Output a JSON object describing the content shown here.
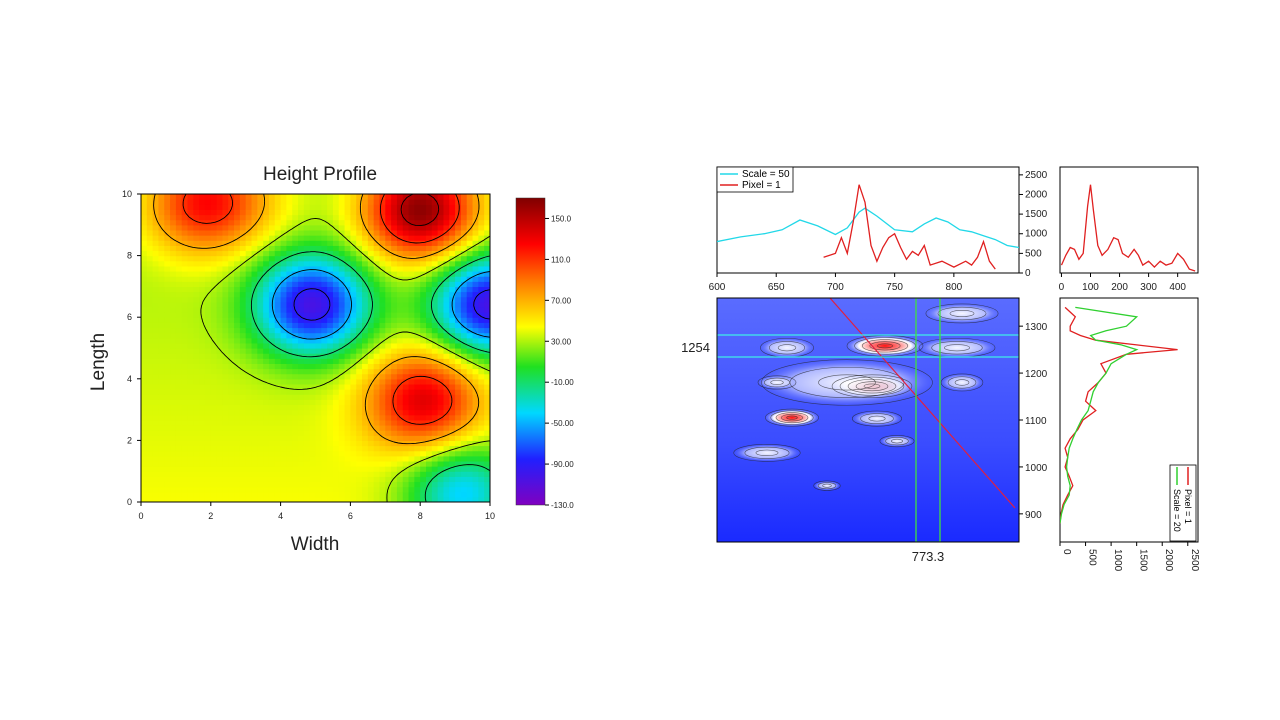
{
  "chart_data": [
    {
      "type": "heatmap",
      "title": "Height Profile",
      "xlabel": "Width",
      "ylabel": "Length",
      "xlim": [
        0,
        10
      ],
      "ylim": [
        0,
        10
      ],
      "xticks": [
        "0",
        "2",
        "4",
        "6",
        "8",
        "10"
      ],
      "yticks": [
        "0",
        "2",
        "4",
        "6",
        "8",
        "10"
      ],
      "colorbar": {
        "range": [
          -130,
          170
        ],
        "ticks": [
          "150.0",
          "110.0",
          "70.00",
          "30.00",
          "-10.00",
          "-50.00",
          "-90.00",
          "-130.0"
        ],
        "tick_values": [
          150,
          110,
          70,
          30,
          -10,
          -50,
          -90,
          -130
        ]
      },
      "peaks": [
        {
          "x": 1.7,
          "y": 9.7,
          "value": 110
        },
        {
          "x": 8.0,
          "y": 9.5,
          "value": 165
        },
        {
          "x": 8.1,
          "y": 3.3,
          "value": 125
        },
        {
          "x": 4.9,
          "y": 6.4,
          "value": -110
        },
        {
          "x": 10.0,
          "y": 6.4,
          "value": -110
        },
        {
          "x": 9.2,
          "y": 0.3,
          "value": -60
        },
        {
          "x": 3.0,
          "y": 9.8,
          "value": 50
        }
      ]
    },
    {
      "type": "line",
      "panel": "top-profile",
      "legend": "top-left",
      "x_ticks": [
        "600",
        "650",
        "700",
        "750",
        "800"
      ],
      "y_ticks": [
        "0",
        "500",
        "1000",
        "1500",
        "2000",
        "2500"
      ],
      "xlim": [
        600,
        855
      ],
      "ylim": [
        0,
        2700
      ],
      "series": [
        {
          "name": "Scale = 50",
          "color": "#22d8e8",
          "x": [
            600,
            620,
            640,
            655,
            670,
            685,
            700,
            710,
            720,
            725,
            735,
            750,
            765,
            775,
            785,
            795,
            805,
            815,
            825,
            835,
            845,
            855
          ],
          "y": [
            800,
            920,
            1000,
            1100,
            1350,
            1200,
            980,
            1150,
            1550,
            1650,
            1450,
            1100,
            1050,
            1250,
            1400,
            1300,
            1100,
            1050,
            950,
            850,
            700,
            650
          ]
        },
        {
          "name": "Pixel = 1",
          "color": "#e02020",
          "x": [
            690,
            700,
            705,
            710,
            715,
            720,
            725,
            730,
            735,
            740,
            745,
            750,
            755,
            760,
            765,
            770,
            775,
            780,
            790,
            800,
            810,
            815,
            820,
            825,
            830,
            835
          ],
          "y": [
            400,
            500,
            900,
            500,
            1300,
            2250,
            1800,
            700,
            300,
            650,
            900,
            1000,
            650,
            350,
            550,
            450,
            700,
            200,
            300,
            150,
            300,
            200,
            400,
            800,
            300,
            100
          ]
        }
      ]
    },
    {
      "type": "heatmap",
      "panel": "image-contour",
      "x_readout": "773.3",
      "y_readout": "1254",
      "yticks": [
        "900",
        "1000",
        "1100",
        "1200",
        "1300"
      ],
      "ylim": [
        840,
        1360
      ],
      "xlim": [
        600,
        855
      ],
      "crosshair": {
        "x": 773.3,
        "y": 1254
      }
    },
    {
      "type": "line",
      "panel": "top-right-profile",
      "x_ticks": [
        "0",
        "100",
        "200",
        "300",
        "400"
      ],
      "xlim": [
        -5,
        470
      ],
      "ylim": [
        0,
        2700
      ],
      "series": [
        {
          "color": "#e02020",
          "x": [
            0,
            15,
            30,
            45,
            60,
            75,
            90,
            100,
            110,
            125,
            140,
            160,
            180,
            195,
            210,
            230,
            250,
            265,
            280,
            300,
            320,
            340,
            360,
            380,
            400,
            420,
            440,
            460
          ],
          "y": [
            200,
            450,
            650,
            600,
            350,
            500,
            1700,
            2250,
            1600,
            700,
            450,
            600,
            900,
            850,
            500,
            400,
            600,
            450,
            200,
            300,
            150,
            300,
            200,
            250,
            500,
            350,
            100,
            50
          ]
        }
      ]
    },
    {
      "type": "line",
      "panel": "side-profile",
      "legend": "bottom-right",
      "x_ticks": [
        "0",
        "500",
        "1000",
        "1500",
        "2000",
        "2500"
      ],
      "xlim": [
        0,
        2700
      ],
      "ylim": [
        840,
        1360
      ],
      "series": [
        {
          "name": "Pixel = 1",
          "color": "#e02020",
          "y": [
            880,
            900,
            920,
            940,
            960,
            980,
            1000,
            1020,
            1040,
            1060,
            1080,
            1100,
            1120,
            1140,
            1160,
            1180,
            1200,
            1220,
            1240,
            1250,
            1260,
            1270,
            1280,
            1290,
            1300,
            1320,
            1340
          ],
          "x": [
            0,
            20,
            60,
            150,
            250,
            180,
            100,
            150,
            100,
            200,
            350,
            450,
            700,
            500,
            550,
            750,
            900,
            800,
            1300,
            2300,
            1500,
            700,
            400,
            200,
            200,
            300,
            100
          ]
        },
        {
          "name": "Scale = 20",
          "color": "#30d030",
          "y": [
            880,
            900,
            920,
            940,
            960,
            980,
            1000,
            1020,
            1040,
            1060,
            1080,
            1100,
            1120,
            1140,
            1160,
            1180,
            1200,
            1220,
            1240,
            1250,
            1260,
            1270,
            1280,
            1290,
            1300,
            1320,
            1340
          ],
          "x": [
            0,
            30,
            80,
            180,
            200,
            150,
            130,
            150,
            180,
            250,
            330,
            420,
            550,
            600,
            650,
            750,
            900,
            1000,
            1300,
            1500,
            1200,
            700,
            600,
            900,
            1300,
            1500,
            300
          ]
        }
      ]
    }
  ]
}
